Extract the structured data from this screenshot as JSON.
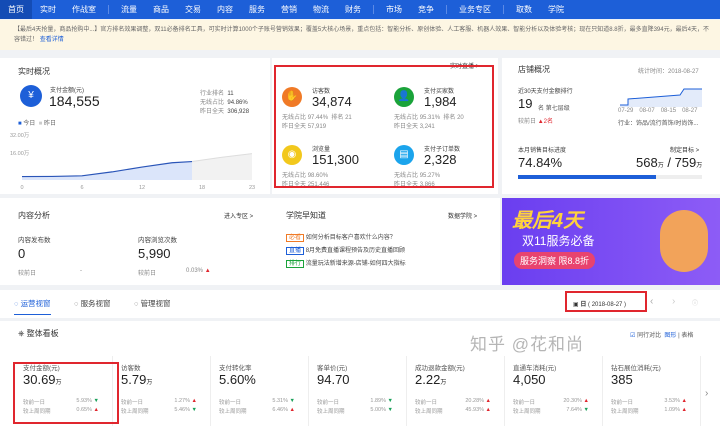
{
  "nav": {
    "items": [
      "首页",
      "实时",
      "作战室",
      "流量",
      "商品",
      "交易",
      "内容",
      "服务",
      "营销",
      "物流",
      "财务",
      "市场",
      "竞争",
      "业务专区",
      "取数",
      "学院"
    ],
    "active": "首页"
  },
  "notice": {
    "text": "【最后4天抢量，商品抢购中...】官方排名效果调整，双11必备排名工具，可实时计算1000个子账号营销效果；覆盖5大核心场景，重点包括：智能分析、原创体验、人工客服、机器人效果、智能分析以及体验考核；现在只知道8.8折，最多直降394元，最后4天，不容错过！",
    "link": "查看详情"
  },
  "realtime": {
    "title": "实时概况",
    "pay_label": "支付金额(元)",
    "pay_value": "184,555",
    "stats": [
      {
        "label": "行业排名",
        "value": "11"
      },
      {
        "label": "无线占比",
        "value": "94.86%"
      },
      {
        "label": "昨日全天",
        "value": "306,928"
      }
    ],
    "legend": [
      "今日",
      "昨日"
    ],
    "chart_data": {
      "type": "area",
      "x_ticks": [
        "0",
        "6",
        "12",
        "18",
        "23"
      ],
      "y_ticks": [
        "32.00万",
        "16.00万"
      ],
      "series": [
        {
          "name": "今日",
          "x": [
            0,
            3,
            6,
            9,
            12,
            15,
            17
          ],
          "y": [
            1.2,
            1.3,
            1.8,
            5,
            9,
            12.5,
            13.5
          ]
        },
        {
          "name": "昨日",
          "x": [
            17,
            20,
            23
          ],
          "y": [
            13.5,
            17,
            20
          ]
        }
      ]
    }
  },
  "center": {
    "header_link": "实时直播 >",
    "metrics": [
      {
        "label": "访客数",
        "value": "34,874",
        "r1l": "无线占比",
        "r1v": "97.44%",
        "rank_l": "排名",
        "rank_v": "21",
        "r2l": "昨日全天",
        "r2v": "57,919",
        "color": "#f07a26",
        "icon": "footprint-icon"
      },
      {
        "label": "支付买家数",
        "value": "1,984",
        "r1l": "无线占比",
        "r1v": "95.31%",
        "rank_l": "排名",
        "rank_v": "20",
        "r2l": "昨日全天",
        "r2v": "3,241",
        "color": "#1aa33a",
        "icon": "users-icon"
      },
      {
        "label": "浏览量",
        "value": "151,300",
        "r1l": "无线占比",
        "r1v": "98.60%",
        "r2l": "昨日全天",
        "r2v": "251,446",
        "color": "#f2c81c",
        "icon": "eye-icon"
      },
      {
        "label": "支付子订单数",
        "value": "2,328",
        "r1l": "无线占比",
        "r1v": "95.27%",
        "r2l": "昨日全天",
        "r2v": "3,866",
        "color": "#1ba4ec",
        "icon": "order-icon"
      }
    ]
  },
  "store": {
    "title": "店铺概况",
    "stat_date": "统计时间：2018-08-27",
    "rank_label": "近30天支付金额排行",
    "rank_value": "19",
    "rank_unit": "名",
    "tier": "第七层级",
    "compare_label": "较前日",
    "compare_value": "2名",
    "chart_ticks": [
      "07-29",
      "08-07",
      "08-15",
      "08-27"
    ],
    "industry": "行业：饰品/流行首饰/时尚饰...",
    "target_label": "本月销售目标进度",
    "target_link": "制定目标 >",
    "progress_text": "74.84%",
    "progress": 74.84,
    "sales": "568",
    "sales_target": "759",
    "unit": "万"
  },
  "content": {
    "title": "内容分析",
    "link": "进入专区 >",
    "items": [
      {
        "label": "内容发布数",
        "value": "0",
        "cmp": "较前日",
        "delta": "-"
      },
      {
        "label": "内容浏览次数",
        "value": "5,990",
        "cmp": "较前日",
        "delta": "0.03%"
      }
    ]
  },
  "academy": {
    "title": "学院早知道",
    "link": "数据学院 >",
    "items": [
      {
        "tag": "必看",
        "text": "如何分析目标客户喜欢什么内容？",
        "color": "#f07a26"
      },
      {
        "tag": "直播",
        "text": "8月免费直播课程预告及历史直播回顾",
        "color": "#1d5fd8"
      },
      {
        "tag": "排行",
        "text": "流量玩法新增来源-店铺-如何四大指标",
        "color": "#1aa33a"
      }
    ]
  },
  "banner": {
    "headline": "最后4天",
    "sub": "双11服务必备",
    "cta": "服务洞察 限8.8折"
  },
  "tabs": {
    "items": [
      "运营视窗",
      "服务视窗",
      "管理视窗"
    ],
    "active": "运营视窗",
    "date_label": "日",
    "date": "( 2018-08-27 )"
  },
  "board": {
    "title": "整体看板",
    "checkbox": "同行对比",
    "view1": "图形",
    "view2": "表格",
    "metrics": [
      {
        "label": "支付金额(元)",
        "value": "30.69",
        "unit": "万",
        "d1": "5.93%",
        "t1": "dn",
        "d2": "0.65%",
        "t2": "up"
      },
      {
        "label": "访客数",
        "value": "5.79",
        "unit": "万",
        "d1": "1.27%",
        "t1": "up",
        "d2": "5.46%",
        "t2": "dn"
      },
      {
        "label": "支付转化率",
        "value": "5.60%",
        "unit": "",
        "d1": "5.31%",
        "t1": "dn",
        "d2": "6.46%",
        "t2": "up"
      },
      {
        "label": "客单价(元)",
        "value": "94.70",
        "unit": "",
        "d1": "1.89%",
        "t1": "dn",
        "d2": "5.00%",
        "t2": "dn"
      },
      {
        "label": "成功退款金额(元)",
        "value": "2.22",
        "unit": "万",
        "d1": "20.28%",
        "t1": "up",
        "d2": "45.93%",
        "t2": "up"
      },
      {
        "label": "直通车消耗(元)",
        "value": "4,050",
        "unit": "",
        "d1": "20.30%",
        "t1": "up",
        "d2": "7.64%",
        "t2": "dn"
      },
      {
        "label": "钻石展位消耗(元)",
        "value": "385",
        "unit": "",
        "d1": "3.53%",
        "t1": "up",
        "d2": "1.09%",
        "t2": "up"
      }
    ],
    "cmp1": "较前一日",
    "cmp2": "较上周同期"
  },
  "watermark": "知乎 @花和尚"
}
